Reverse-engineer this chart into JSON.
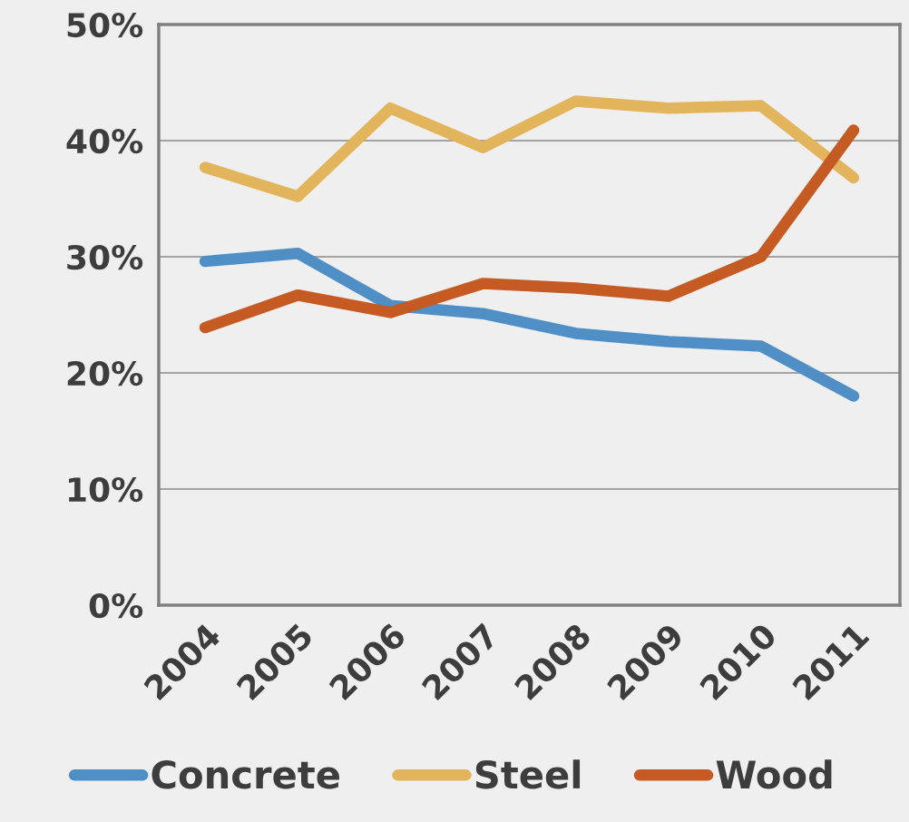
{
  "chart_data": {
    "type": "line",
    "categories": [
      "2004",
      "2005",
      "2006",
      "2007",
      "2008",
      "2009",
      "2010",
      "2011"
    ],
    "series": [
      {
        "name": "Concrete",
        "color": "#4f8fc6",
        "values": [
          29.6,
          30.3,
          25.8,
          25.1,
          23.4,
          22.7,
          22.3,
          18.0
        ]
      },
      {
        "name": "Steel",
        "color": "#e2b45c",
        "values": [
          37.7,
          35.2,
          42.8,
          39.4,
          43.4,
          42.8,
          43.0,
          36.8
        ]
      },
      {
        "name": "Wood",
        "color": "#c55a22",
        "values": [
          23.9,
          26.7,
          25.2,
          27.7,
          27.3,
          26.6,
          30.0,
          40.9
        ]
      }
    ],
    "ylim": [
      0,
      50
    ],
    "yticks": [
      {
        "value": 0,
        "label": "0%"
      },
      {
        "value": 10,
        "label": "10%"
      },
      {
        "value": 20,
        "label": "20%"
      },
      {
        "value": 30,
        "label": "30%"
      },
      {
        "value": 40,
        "label": "40%"
      },
      {
        "value": 50,
        "label": "50%"
      }
    ],
    "grid": "y",
    "legend": "bottom",
    "line_style": "solid"
  }
}
